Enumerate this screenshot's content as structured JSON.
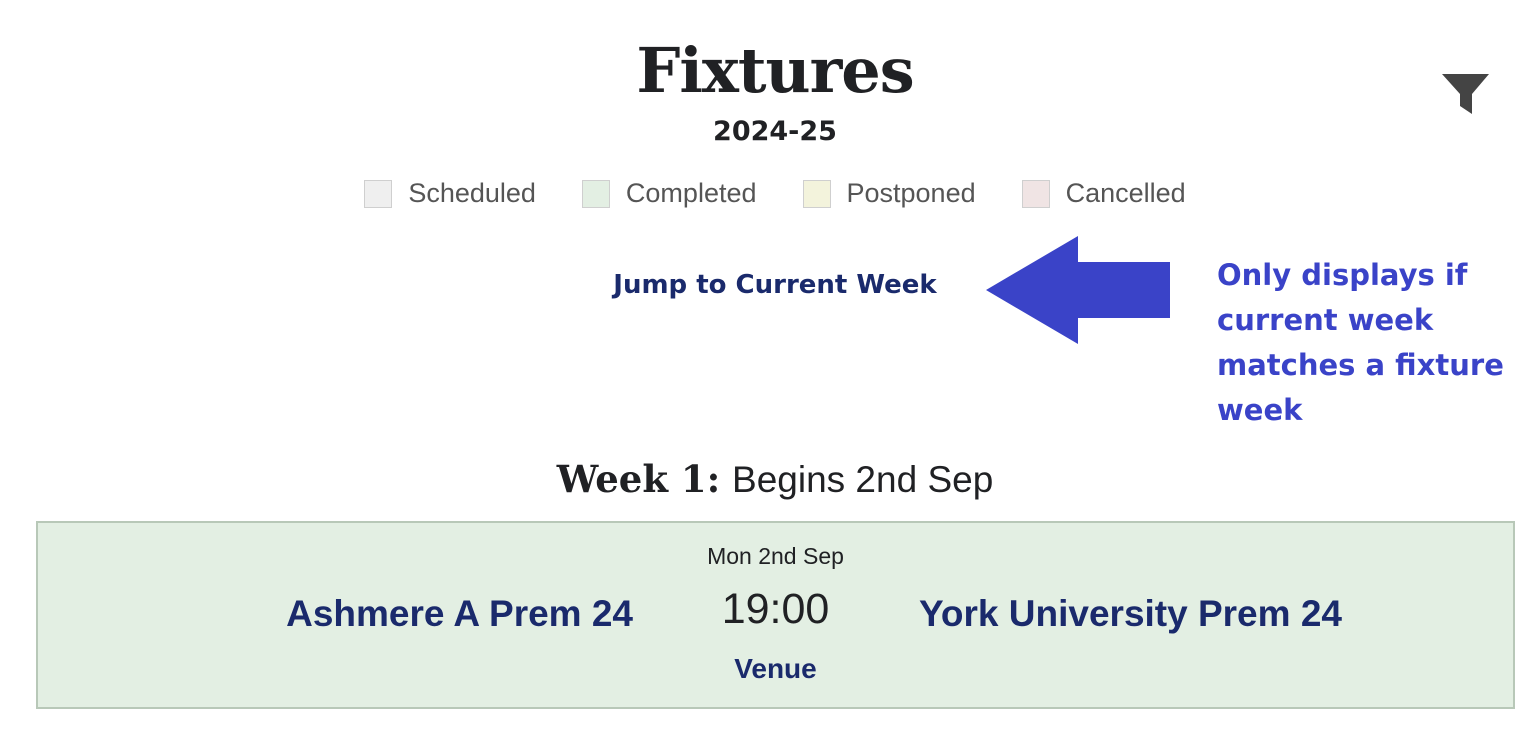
{
  "header": {
    "title": "Fixtures",
    "season": "2024-25",
    "filter_icon": "filter-icon"
  },
  "legend": [
    {
      "label": "Scheduled",
      "color": "#efefef"
    },
    {
      "label": "Completed",
      "color": "#e3efe3"
    },
    {
      "label": "Postponed",
      "color": "#f3f3dc"
    },
    {
      "label": "Cancelled",
      "color": "#f0e4e4"
    }
  ],
  "jump_link": "Jump to Current Week",
  "annotation": {
    "text": "Only displays if current week matches a fixture week",
    "arrow_icon": "left-arrow-icon",
    "color": "#3a43c8"
  },
  "week": {
    "label": "Week 1:",
    "begins": "Begins 2nd Sep"
  },
  "fixture": {
    "date": "Mon 2nd Sep",
    "home_team": "Ashmere A Prem 24",
    "time": "19:00",
    "away_team": "York University Prem 24",
    "venue": "Venue",
    "status": "Completed"
  }
}
